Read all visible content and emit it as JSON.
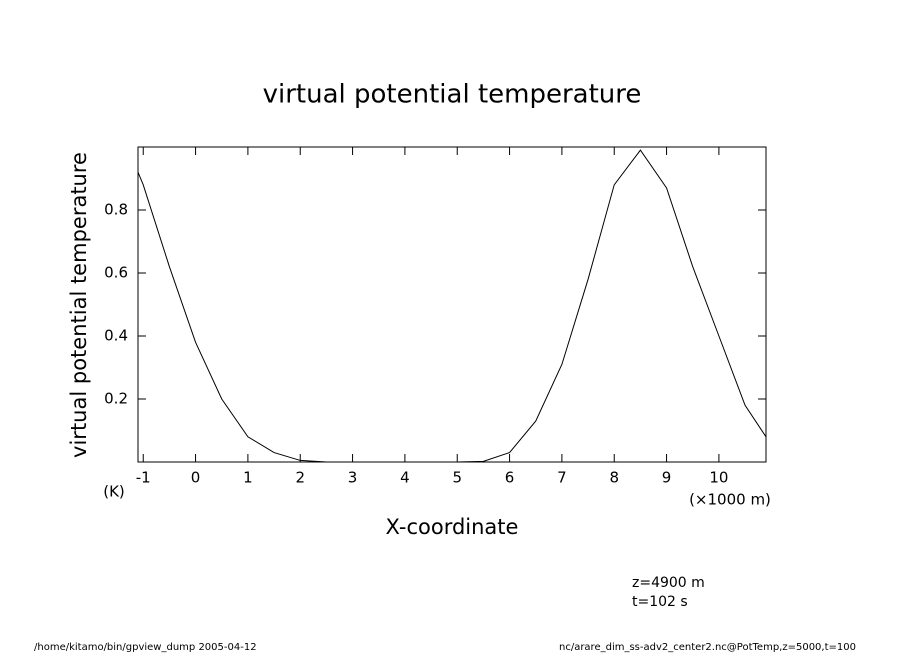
{
  "chart_data": {
    "type": "line",
    "title": "virtual potential temperature",
    "y_label": "virtual potential temperature",
    "y_unit": "(K)",
    "x_label": "X-coordinate",
    "x_unit": "(×1000 m)",
    "annotations": [
      "z=4900 m",
      "t=102 s"
    ],
    "footer_left": "/home/kitamo/bin/gpview_dump  2005-04-12",
    "footer_right": "nc/arare_dim_ss-adv2_center2.nc@PotTemp,z=5000,t=100",
    "x": [
      -1.1,
      -1,
      -0.5,
      0,
      0.5,
      1,
      1.5,
      2,
      2.5,
      3,
      3.5,
      4,
      4.5,
      5,
      5.5,
      6,
      6.5,
      7,
      7.5,
      8,
      8.5,
      9,
      9.5,
      10,
      10.5,
      10.9
    ],
    "series": [
      {
        "color": "#000000",
        "values": [
          0.92,
          0.88,
          0.62,
          0.38,
          0.2,
          0.08,
          0.03,
          0.005,
          0,
          0,
          0,
          0,
          0,
          0,
          0.002,
          0.03,
          0.13,
          0.31,
          0.58,
          0.88,
          0.99,
          0.87,
          0.62,
          0.4,
          0.18,
          0.08
        ]
      }
    ],
    "xlim": [
      -1.1,
      10.9
    ],
    "xticks": [
      -1,
      0,
      1,
      2,
      3,
      4,
      5,
      6,
      7,
      8,
      9,
      10
    ],
    "ylim": [
      0,
      1
    ],
    "yticks": [
      0.2,
      0.4,
      0.6,
      0.8
    ],
    "grid": false
  }
}
